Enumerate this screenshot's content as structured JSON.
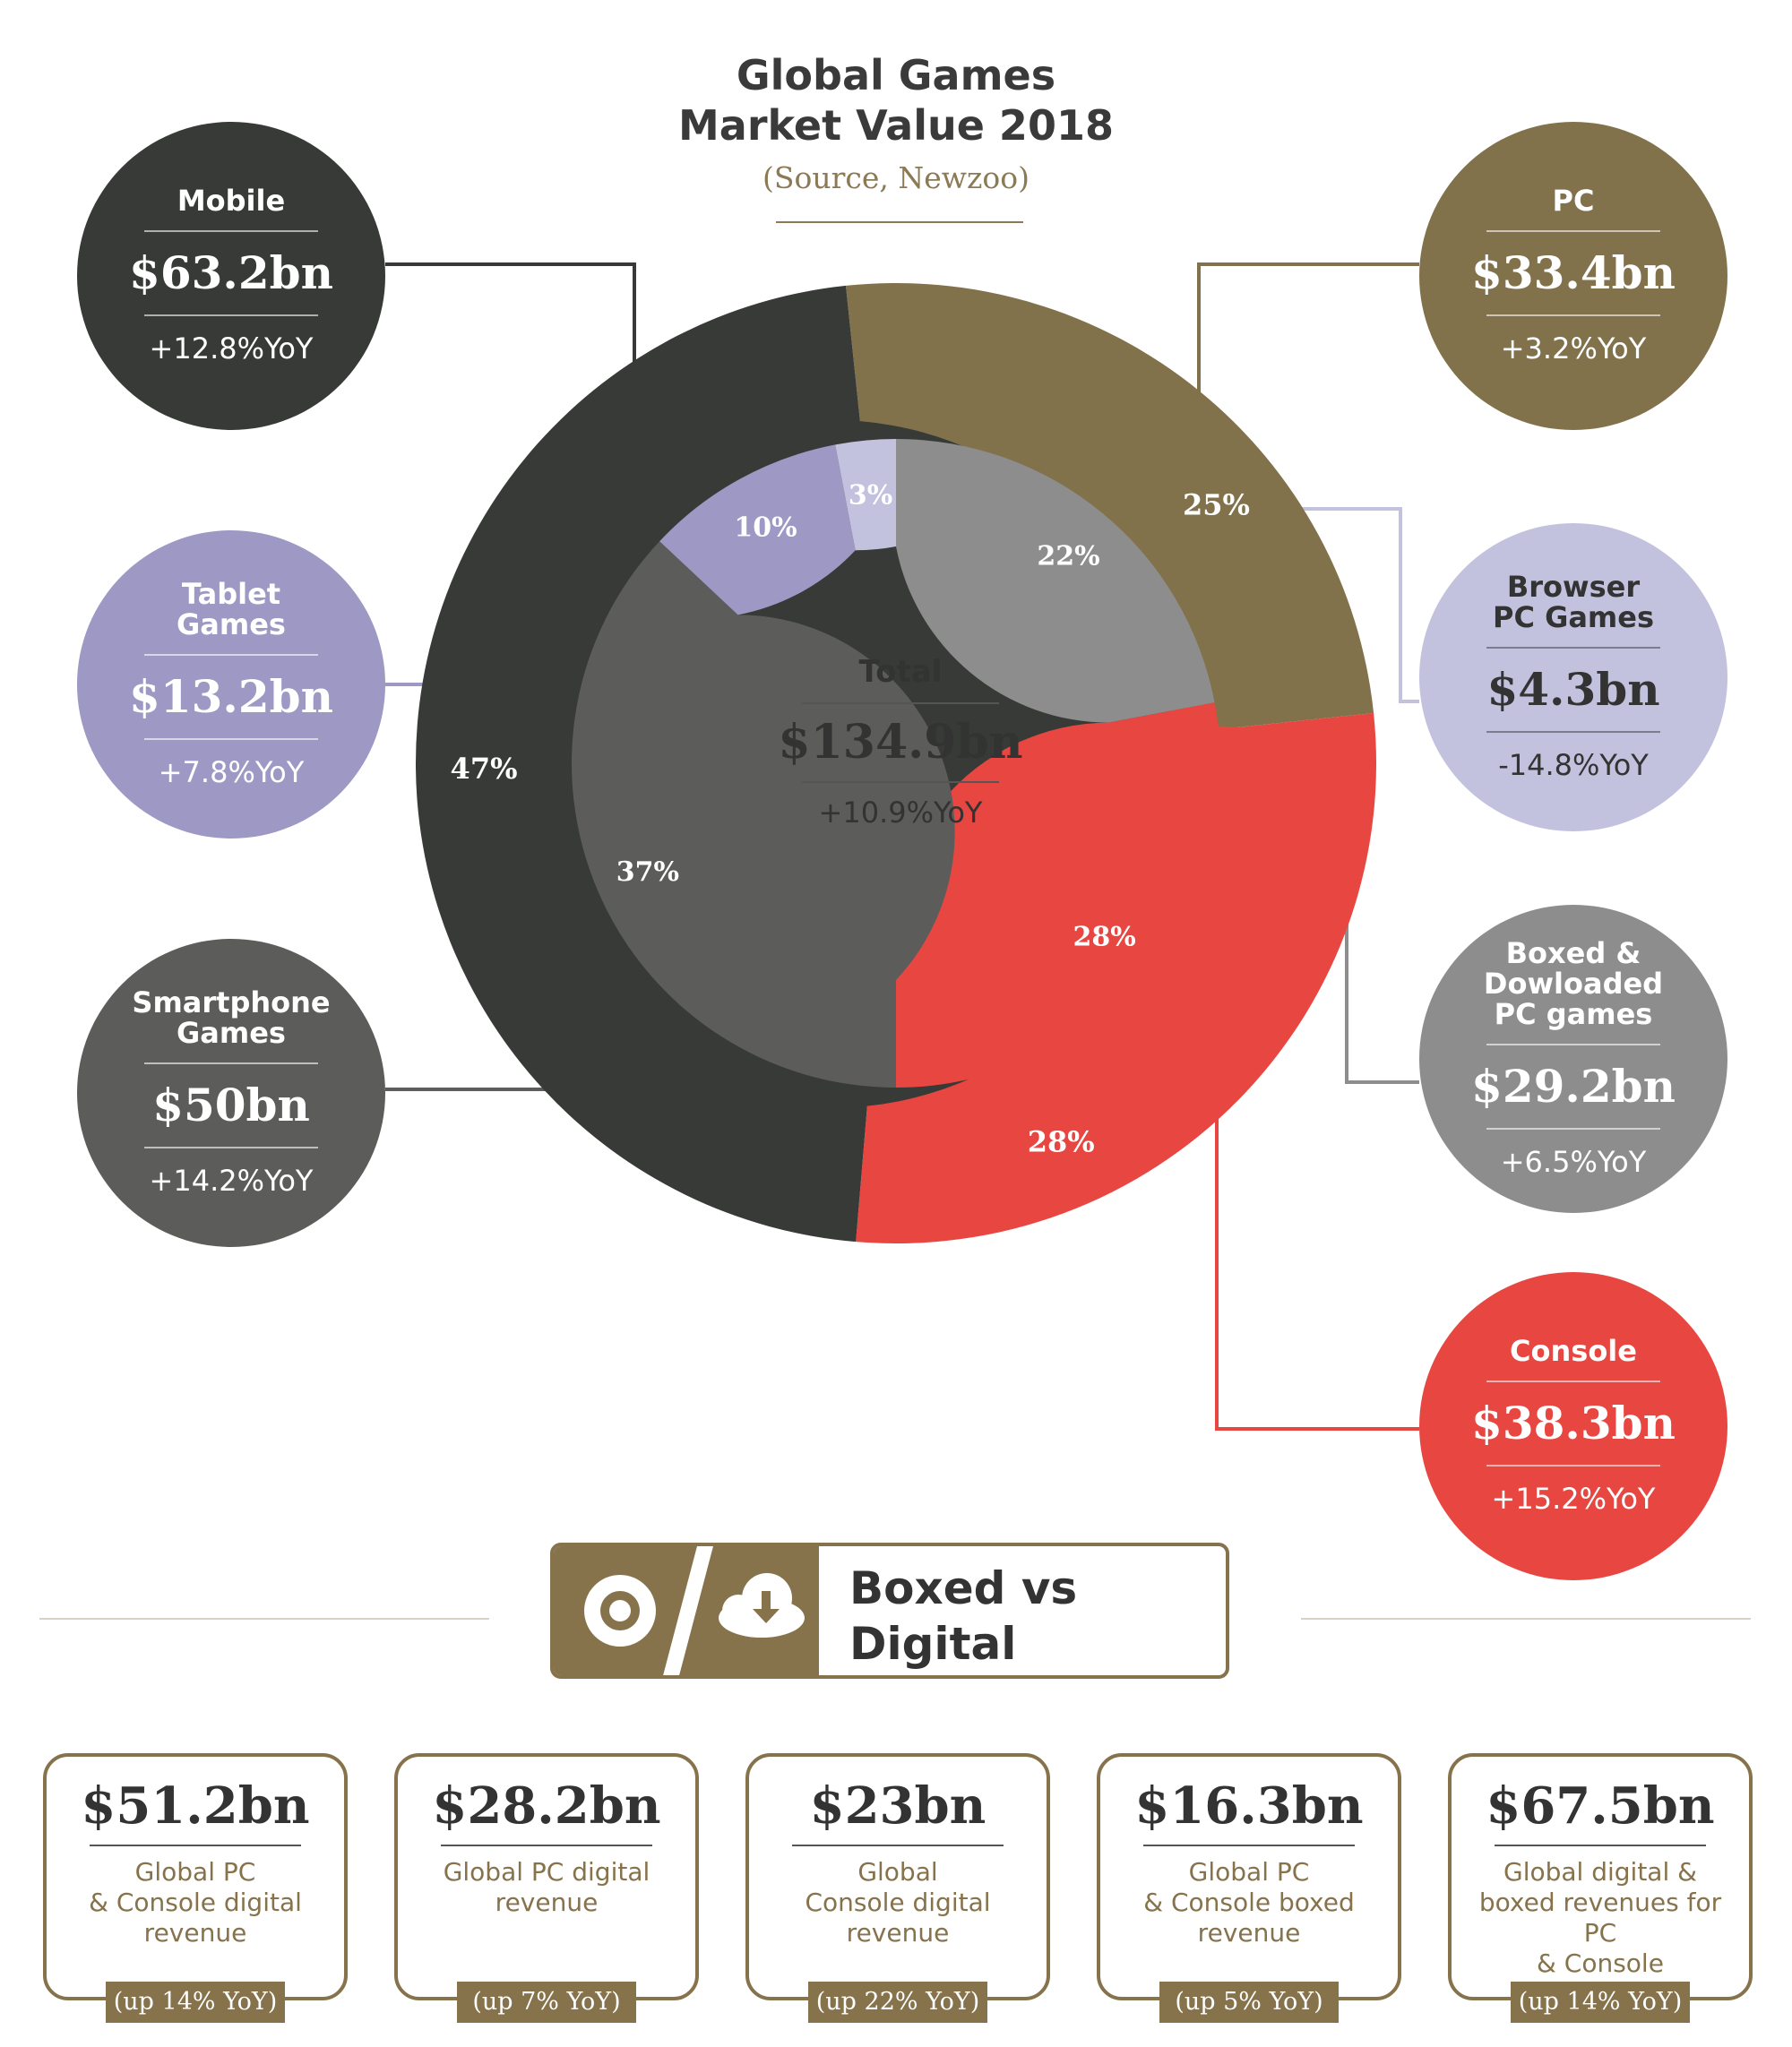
{
  "title": {
    "line1": "Global Games",
    "line2": "Market Value 2018",
    "source": "(Source, Newzoo)"
  },
  "colors": {
    "mobile": "#373a36",
    "smartphone": "#5c5d5a",
    "tablet": "#9d98c4",
    "pc": "#82724b",
    "boxed_pc": "#8d8d8d",
    "browser_pc": "#c3c2de",
    "console": "#e84641",
    "accent": "#86724b"
  },
  "bubbles": {
    "mobile": {
      "name": "Mobile",
      "value": "$63.2bn",
      "yoy": "+12.8%YoY"
    },
    "tablet": {
      "name": "Tablet Games",
      "value": "$13.2bn",
      "yoy": "+7.8%YoY"
    },
    "smartphone": {
      "name": "Smartphone Games",
      "value": "$50bn",
      "yoy": "+14.2%YoY"
    },
    "pc": {
      "name": "PC",
      "value": "$33.4bn",
      "yoy": "+3.2%YoY"
    },
    "browser": {
      "name": "Browser PC Games",
      "value": "$4.3bn",
      "yoy": "-14.8%YoY"
    },
    "boxed": {
      "name": "Boxed & Dowloaded PC games",
      "value": "$29.2bn",
      "yoy": "+6.5%YoY"
    },
    "console": {
      "name": "Console",
      "value": "$38.3bn",
      "yoy": "+15.2%YoY"
    }
  },
  "total": {
    "name": "Total",
    "value": "$134.9bn",
    "yoy": "+10.9%YoY"
  },
  "chart_data": {
    "type": "pie",
    "title": "Global Games Market Value 2018",
    "rings": [
      {
        "level": "outer",
        "slices": [
          {
            "label": "PC",
            "percent": 25,
            "value_bn": 33.4,
            "color": "#82724b"
          },
          {
            "label": "Console",
            "percent": 28,
            "value_bn": 38.3,
            "color": "#e84641"
          },
          {
            "label": "Mobile",
            "percent": 47,
            "value_bn": 63.2,
            "color": "#373a36"
          }
        ]
      },
      {
        "level": "inner",
        "slices": [
          {
            "label": "Boxed & Dowloaded PC games",
            "percent": 22,
            "value_bn": 29.2,
            "color": "#8d8d8d"
          },
          {
            "label": "Console",
            "percent": 28,
            "value_bn": 38.3,
            "color": "#e84641"
          },
          {
            "label": "Smartphone Games",
            "percent": 37,
            "value_bn": 50,
            "color": "#5c5d5a"
          },
          {
            "label": "Tablet Games",
            "percent": 10,
            "value_bn": 13.2,
            "color": "#9d98c4"
          },
          {
            "label": "Browser PC Games",
            "percent": 3,
            "value_bn": 4.3,
            "color": "#c3c2de"
          }
        ]
      }
    ]
  },
  "boxed_vs_digital": {
    "title": "Boxed vs Digital",
    "source": "(Source, Newzoo)",
    "stats": [
      {
        "value": "$51.2bn",
        "lines": [
          "Global PC",
          "& Console digital",
          "revenue"
        ],
        "badge": "(up 14% YoY)"
      },
      {
        "value": "$28.2bn",
        "lines": [
          "Global PC digital",
          "revenue"
        ],
        "badge": "(up 7% YoY)"
      },
      {
        "value": "$23bn",
        "lines": [
          "Global",
          "Console digital",
          "revenue"
        ],
        "badge": "(up 22% YoY)"
      },
      {
        "value": "$16.3bn",
        "lines": [
          "Global PC",
          "& Console boxed",
          "revenue"
        ],
        "badge": "(up 5% YoY)"
      },
      {
        "value": "$67.5bn",
        "lines": [
          "Global digital &",
          "boxed revenues for PC",
          "& Console"
        ],
        "badge": "(up 14% YoY)"
      }
    ]
  }
}
